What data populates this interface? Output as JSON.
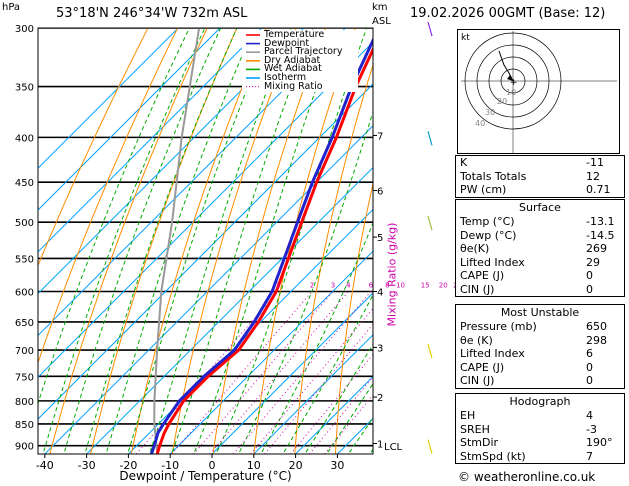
{
  "header": {
    "location": "53°18'N  246°34'W  732m  ASL",
    "datetime": "19.02.2026  00GMT  (Base: 12)",
    "hpa_label": "hPa",
    "km_label": "km",
    "asl_label": "ASL"
  },
  "mixing_ratio_label": "Mixing Ratio (g/kg)",
  "lcl_label": "LCL",
  "copyright": "© weatheronline.co.uk",
  "colors": {
    "temperature": "#ff0000",
    "dewpoint": "#2222cc",
    "parcel": "#999999",
    "dry_adiabat": "#ff8c00",
    "wet_adiabat": "#00aa00",
    "isotherm": "#00a0ff",
    "mixing_ratio": "#cc00aa"
  },
  "legend": [
    {
      "label": "Temperature",
      "color": "#ff0000",
      "style": "solid"
    },
    {
      "label": "Dewpoint",
      "color": "#2222cc",
      "style": "solid"
    },
    {
      "label": "Parcel Trajectory",
      "color": "#999999",
      "style": "solid"
    },
    {
      "label": "Dry Adiabat",
      "color": "#ff8c00",
      "style": "solid"
    },
    {
      "label": "Wet Adiabat",
      "color": "#00aa00",
      "style": "solid"
    },
    {
      "label": "Isotherm",
      "color": "#00a0ff",
      "style": "solid"
    },
    {
      "label": "Mixing Ratio",
      "color": "#cc00aa",
      "style": "dotted"
    }
  ],
  "chart_data": {
    "type": "line",
    "title": "Skew-T log-P diagram",
    "xlabel": "Dewpoint / Temperature (°C)",
    "ylabel": "hPa",
    "xlim": [
      -40,
      40
    ],
    "ylim": [
      920,
      300
    ],
    "x_ticks": [
      -40,
      -30,
      -20,
      -10,
      0,
      10,
      20,
      30
    ],
    "pressure_levels": [
      300,
      350,
      400,
      450,
      500,
      550,
      600,
      650,
      700,
      750,
      800,
      850,
      900
    ],
    "km_ticks": [
      {
        "km": "1",
        "p": 895
      },
      {
        "km": "2",
        "p": 792
      },
      {
        "km": "3",
        "p": 695
      },
      {
        "km": "4",
        "p": 600
      },
      {
        "km": "5",
        "p": 520
      },
      {
        "km": "6",
        "p": 460
      },
      {
        "km": "7",
        "p": 398
      }
    ],
    "mixing_ratio_values": [
      1,
      2,
      3,
      4,
      6,
      8,
      10,
      15,
      20,
      25
    ],
    "series": [
      {
        "name": "Temperature",
        "pressures": [
          920,
          900,
          870,
          850,
          800,
          750,
          700,
          650,
          600,
          550,
          500,
          450,
          400,
          350,
          300
        ],
        "values": [
          -13.1,
          -14.5,
          -16.5,
          -17.5,
          -19.5,
          -19.5,
          -18.5,
          -20.5,
          -23.5,
          -28.5,
          -34.0,
          -40.0,
          -46.0,
          -53.5,
          -61.0
        ]
      },
      {
        "name": "Dewpoint",
        "pressures": [
          920,
          900,
          870,
          850,
          800,
          750,
          700,
          650,
          600,
          550,
          500,
          450,
          400,
          350,
          300
        ],
        "values": [
          -14.5,
          -15.8,
          -18.0,
          -18.8,
          -20.5,
          -20.5,
          -19.5,
          -21.5,
          -24.5,
          -29.5,
          -35.0,
          -41.0,
          -47.0,
          -54.5,
          -62.0
        ]
      },
      {
        "name": "Parcel Trajectory",
        "pressures": [
          920,
          850,
          800,
          700,
          600,
          500,
          400,
          300
        ],
        "values": [
          -13.1,
          -21.0,
          -26.5,
          -38.0,
          -51.0,
          -65.0,
          -83.0,
          -105.0
        ]
      }
    ]
  },
  "hodograph": {
    "unit_label": "kt",
    "ring_labels": [
      "10",
      "20",
      "30",
      "40"
    ]
  },
  "table": {
    "indices": [
      {
        "label": "K",
        "value": "-11"
      },
      {
        "label": "Totals Totals",
        "value": "12"
      },
      {
        "label": "PW (cm)",
        "value": "0.71"
      }
    ],
    "surface_title": "Surface",
    "surface": [
      {
        "label": "Temp (°C)",
        "value": "-13.1"
      },
      {
        "label": "Dewp (°C)",
        "value": "-14.5"
      },
      {
        "label": "θe(K)",
        "value": "269"
      },
      {
        "label": "Lifted Index",
        "value": "29"
      },
      {
        "label": "CAPE (J)",
        "value": "0"
      },
      {
        "label": "CIN (J)",
        "value": "0"
      }
    ],
    "unstable_title": "Most Unstable",
    "unstable": [
      {
        "label": "Pressure (mb)",
        "value": "650"
      },
      {
        "label": "θe (K)",
        "value": "298"
      },
      {
        "label": "Lifted Index",
        "value": "6"
      },
      {
        "label": "CAPE (J)",
        "value": "0"
      },
      {
        "label": "CIN (J)",
        "value": "0"
      }
    ],
    "hodo_title": "Hodograph",
    "hodo": [
      {
        "label": "EH",
        "value": "4"
      },
      {
        "label": "SREH",
        "value": "-3"
      },
      {
        "label": "StmDir",
        "value": "190°"
      },
      {
        "label": "StmSpd (kt)",
        "value": "7"
      }
    ]
  }
}
